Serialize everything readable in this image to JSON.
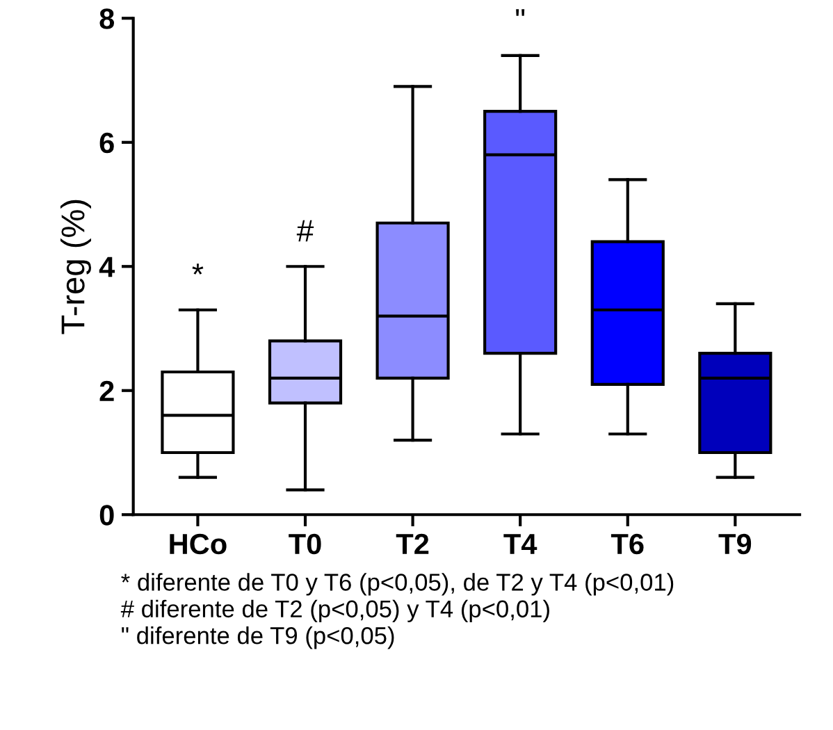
{
  "chart_data": {
    "type": "box",
    "ylabel": "T-reg (%)",
    "categories": [
      "HCo",
      "T0",
      "T2",
      "T4",
      "T6",
      "T9"
    ],
    "colors": [
      "#ffffff",
      "#c0c0ff",
      "#8c8cff",
      "#5a5aff",
      "#0000ff",
      "#0000bb"
    ],
    "boxes": [
      {
        "low": 0.6,
        "q1": 1.0,
        "median": 1.6,
        "q3": 2.3,
        "high": 3.3
      },
      {
        "low": 0.4,
        "q1": 1.8,
        "median": 2.2,
        "q3": 2.8,
        "high": 4.0
      },
      {
        "low": 1.2,
        "q1": 2.2,
        "median": 3.2,
        "q3": 4.7,
        "high": 6.9
      },
      {
        "low": 1.3,
        "q1": 2.6,
        "median": 5.8,
        "q3": 6.5,
        "high": 7.4
      },
      {
        "low": 1.3,
        "q1": 2.1,
        "median": 3.3,
        "q3": 4.4,
        "high": 5.4
      },
      {
        "low": 0.6,
        "q1": 1.0,
        "median": 2.2,
        "q3": 2.6,
        "high": 3.4
      }
    ],
    "ylim": [
      0,
      8
    ],
    "yticks": [
      0,
      2,
      4,
      6,
      8
    ],
    "grid": false,
    "legend": false,
    "annotations": [
      "*",
      "#",
      "\"",
      "* diferente de T0 y T6 (p<0,05), de T2 y T4 (p<0,01)",
      "# diferente de T2 (p<0,05) y T4 (p<0,01)",
      "\" diferente de T9 (p<0,05)"
    ]
  }
}
